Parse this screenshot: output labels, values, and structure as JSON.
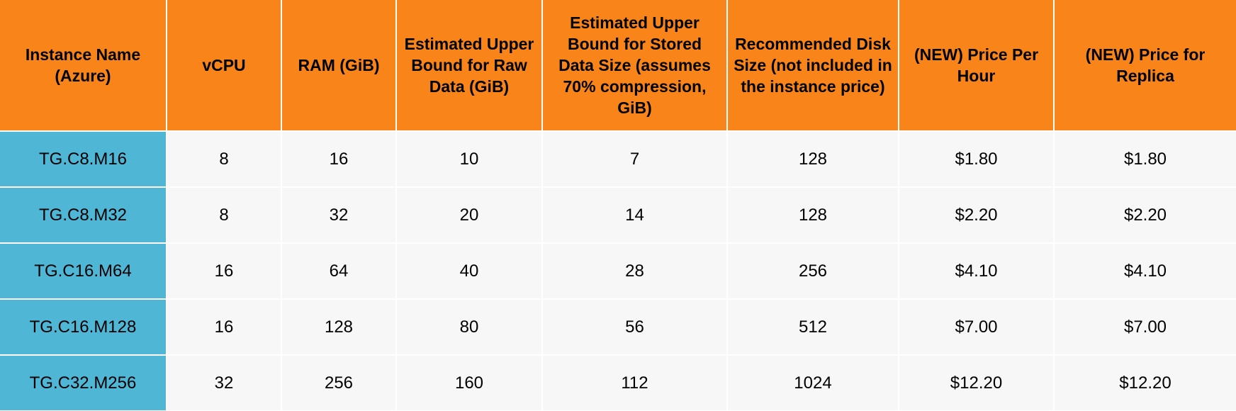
{
  "colors": {
    "header_bg": "#f8841a",
    "name_col_bg": "#4fb6d6",
    "cell_bg": "#f7f7f7"
  },
  "table": {
    "headers": [
      "Instance Name (Azure)",
      "vCPU",
      "RAM (GiB)",
      "Estimated Upper Bound for Raw Data (GiB)",
      "Estimated Upper Bound for Stored Data Size (assumes 70% compression, GiB)",
      "Recommended Disk Size (not included in the instance price)",
      "(NEW) Price Per Hour",
      "(NEW) Price for Replica"
    ],
    "rows": [
      [
        "TG.C8.M16",
        "8",
        "16",
        "10",
        "7",
        "128",
        "$1.80",
        "$1.80"
      ],
      [
        "TG.C8.M32",
        "8",
        "32",
        "20",
        "14",
        "128",
        "$2.20",
        "$2.20"
      ],
      [
        "TG.C16.M64",
        "16",
        "64",
        "40",
        "28",
        "256",
        "$4.10",
        "$4.10"
      ],
      [
        "TG.C16.M128",
        "16",
        "128",
        "80",
        "56",
        "512",
        "$7.00",
        "$7.00"
      ],
      [
        "TG.C32.M256",
        "32",
        "256",
        "160",
        "112",
        "1024",
        "$12.20",
        "$12.20"
      ]
    ]
  }
}
